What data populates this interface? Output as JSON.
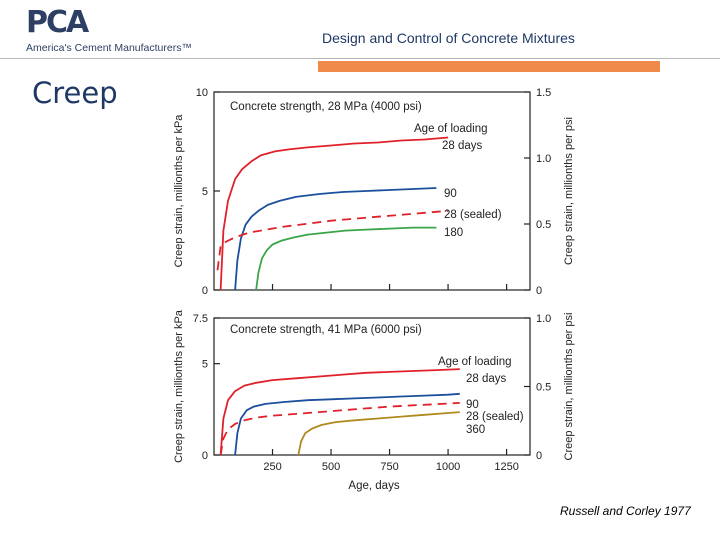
{
  "header": {
    "logo_text": "PCA",
    "logo_tagline": "America's Cement Manufacturers™",
    "title": "Design and Control of Concrete Mixtures"
  },
  "slide": {
    "title": "Creep",
    "citation": "Russell and Corley 1977"
  },
  "colors": {
    "title_blue": "#1f3864",
    "accent_orange": "#ef8a4a",
    "series_red": "#e0212a",
    "series_blue": "#1c4f9c",
    "series_green": "#3aa548",
    "series_gold": "#b08a1e"
  },
  "chart_data": [
    {
      "type": "line",
      "title": "Concrete strength, 28 MPa (4000 psi)",
      "legend_title": "Age of loading",
      "ylabel": "Creep strain, millionths per kPa",
      "ylabel_right": "Creep strain, millionths per psi",
      "ylim": [
        0,
        10
      ],
      "yticks": [
        "0",
        "5",
        "10"
      ],
      "ylim_right": [
        0,
        1.5
      ],
      "yticks_right": [
        "0",
        "0.5",
        "1.0",
        "1.5"
      ],
      "xlim": [
        0,
        1350
      ],
      "series": [
        {
          "name": "28 days",
          "label": "28 days",
          "color": "#e0212a",
          "dashed": false,
          "x": [
            28,
            40,
            60,
            90,
            120,
            160,
            200,
            260,
            320,
            400,
            500,
            600,
            700,
            800,
            900,
            1000
          ],
          "y": [
            0,
            3.0,
            4.5,
            5.6,
            6.1,
            6.5,
            6.8,
            7.0,
            7.1,
            7.2,
            7.3,
            7.4,
            7.45,
            7.55,
            7.6,
            7.7
          ]
        },
        {
          "name": "90",
          "label": "90",
          "color": "#1c4f9c",
          "dashed": false,
          "x": [
            90,
            100,
            115,
            135,
            160,
            190,
            230,
            280,
            350,
            450,
            550,
            650,
            750,
            850,
            950
          ],
          "y": [
            0,
            1.5,
            2.6,
            3.3,
            3.7,
            4.0,
            4.3,
            4.5,
            4.7,
            4.85,
            4.95,
            5.0,
            5.05,
            5.1,
            5.15
          ]
        },
        {
          "name": "28 (sealed)",
          "label": "28 (sealed)",
          "color": "#e0212a",
          "dashed": true,
          "x": [
            15,
            28,
            45,
            70,
            100,
            150,
            200,
            300,
            400,
            500,
            600,
            700,
            800,
            900,
            1000
          ],
          "y": [
            1.0,
            2.2,
            2.4,
            2.55,
            2.7,
            2.9,
            3.0,
            3.2,
            3.35,
            3.5,
            3.6,
            3.7,
            3.8,
            3.9,
            4.0
          ]
        },
        {
          "name": "180",
          "label": "180",
          "color": "#3aa548",
          "dashed": false,
          "x": [
            180,
            190,
            205,
            225,
            250,
            290,
            340,
            400,
            480,
            560,
            650,
            750,
            850,
            950
          ],
          "y": [
            0,
            0.9,
            1.6,
            2.0,
            2.3,
            2.5,
            2.65,
            2.8,
            2.9,
            3.0,
            3.05,
            3.1,
            3.15,
            3.15
          ]
        }
      ]
    },
    {
      "type": "line",
      "title": "Concrete strength, 41 MPa (6000 psi)",
      "legend_title": "Age of loading",
      "xlabel": "Age, days",
      "xticks": [
        "250",
        "500",
        "750",
        "1000",
        "1250"
      ],
      "ylabel": "Creep strain, millionths per kPa",
      "ylabel_right": "Creep strain, millionths per psi",
      "ylim": [
        0,
        7.5
      ],
      "yticks": [
        "0",
        "5",
        "7.5"
      ],
      "ylim_right": [
        0,
        1.0
      ],
      "yticks_right": [
        "0",
        "0.5",
        "1.0"
      ],
      "xlim": [
        0,
        1350
      ],
      "series": [
        {
          "name": "28 days",
          "label": "28 days",
          "color": "#e0212a",
          "dashed": false,
          "x": [
            28,
            40,
            60,
            90,
            130,
            180,
            250,
            350,
            450,
            550,
            650,
            750,
            850,
            950,
            1050
          ],
          "y": [
            0,
            2.0,
            3.0,
            3.5,
            3.8,
            3.95,
            4.1,
            4.2,
            4.3,
            4.4,
            4.5,
            4.55,
            4.6,
            4.65,
            4.7
          ]
        },
        {
          "name": "90",
          "label": "90",
          "color": "#1c4f9c",
          "dashed": false,
          "x": [
            90,
            100,
            115,
            140,
            170,
            220,
            300,
            400,
            500,
            600,
            700,
            800,
            900,
            1000,
            1050
          ],
          "y": [
            0,
            1.2,
            2.0,
            2.45,
            2.65,
            2.8,
            2.9,
            3.0,
            3.05,
            3.1,
            3.15,
            3.2,
            3.25,
            3.3,
            3.35
          ]
        },
        {
          "name": "28 (sealed)",
          "label": "28 (sealed)",
          "color": "#e0212a",
          "dashed": true,
          "x": [
            28,
            40,
            60,
            90,
            130,
            180,
            250,
            350,
            450,
            550,
            650,
            750,
            850,
            950,
            1050
          ],
          "y": [
            0,
            0.9,
            1.4,
            1.7,
            1.9,
            2.05,
            2.15,
            2.25,
            2.35,
            2.45,
            2.55,
            2.65,
            2.72,
            2.78,
            2.85
          ]
        },
        {
          "name": "360",
          "label": "360",
          "color": "#b08a1e",
          "dashed": false,
          "x": [
            360,
            372,
            390,
            420,
            460,
            520,
            600,
            700,
            800,
            900,
            1000,
            1050
          ],
          "y": [
            0,
            0.75,
            1.2,
            1.45,
            1.65,
            1.8,
            1.9,
            2.0,
            2.1,
            2.2,
            2.3,
            2.35
          ]
        }
      ]
    }
  ]
}
